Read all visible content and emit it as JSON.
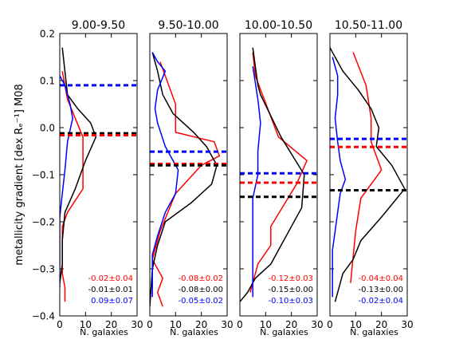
{
  "chart_data": {
    "type": "line",
    "ylabel": "metallicity gradient [dex Rₑ⁻¹] M08",
    "ylim": [
      -0.4,
      0.2
    ],
    "yticks": [
      -0.4,
      -0.3,
      -0.2,
      -0.1,
      0.0,
      0.1,
      0.2
    ],
    "ytick_labels": [
      "−0.4",
      "−0.3",
      "−0.2",
      "−0.1",
      "0.0",
      "0.1",
      "0.2"
    ],
    "xlim": [
      0,
      30
    ],
    "xticks": [
      0,
      10,
      20,
      30
    ],
    "xtick_labels": [
      "0",
      "10",
      "20",
      "30"
    ],
    "grid": false,
    "colors": {
      "red": "#ff0000",
      "black": "#000000",
      "blue": "#0000ff"
    },
    "panels": [
      {
        "title": "9.00-9.50",
        "xlabel": "N. galaxies",
        "series": [
          {
            "color": "red",
            "x": [
              1,
              3,
              9,
              9,
              3,
              1,
              1,
              1,
              1,
              2,
              2
            ],
            "y": [
              0.12,
              0.06,
              -0.02,
              -0.13,
              -0.18,
              -0.21,
              -0.25,
              -0.28,
              -0.31,
              -0.34,
              -0.37
            ]
          },
          {
            "color": "black",
            "x": [
              1,
              3,
              7,
              12,
              14,
              10,
              6,
              2,
              1,
              1,
              0
            ],
            "y": [
              0.17,
              0.07,
              0.04,
              0.01,
              -0.02,
              -0.07,
              -0.13,
              -0.18,
              -0.24,
              -0.29,
              -0.33
            ]
          },
          {
            "color": "blue",
            "x": [
              0,
              2,
              4,
              5,
              3,
              2,
              1,
              0,
              0,
              0,
              0,
              0
            ],
            "y": [
              0.11,
              0.09,
              0.05,
              0.02,
              -0.03,
              -0.09,
              -0.14,
              -0.19,
              -0.23,
              -0.27,
              -0.31,
              -0.34
            ]
          }
        ],
        "hlines": [
          {
            "color": "blue",
            "y": 0.09
          },
          {
            "color": "black",
            "y": -0.012
          },
          {
            "color": "red",
            "y": -0.016
          }
        ],
        "annotations": [
          {
            "color": "red",
            "text": "-0.02±0.04"
          },
          {
            "color": "black",
            "text": "-0.01±0.01"
          },
          {
            "color": "blue",
            "text": "0.09±0.07"
          }
        ]
      },
      {
        "title": "9.50-10.00",
        "xlabel": "N. galaxies",
        "series": [
          {
            "color": "red",
            "x": [
              4,
              10,
              10,
              25,
              27,
              20,
              10,
              4,
              1,
              5,
              3,
              5
            ],
            "y": [
              0.14,
              0.05,
              -0.01,
              -0.03,
              -0.06,
              -0.08,
              -0.14,
              -0.22,
              -0.28,
              -0.32,
              -0.35,
              -0.38
            ]
          },
          {
            "color": "black",
            "x": [
              1,
              3,
              5,
              9,
              17,
              22,
              26,
              24,
              16,
              6,
              3,
              1,
              0
            ],
            "y": [
              0.16,
              0.12,
              0.07,
              0.03,
              -0.01,
              -0.04,
              -0.08,
              -0.12,
              -0.16,
              -0.2,
              -0.25,
              -0.3,
              -0.38
            ]
          },
          {
            "color": "blue",
            "x": [
              1,
              3,
              6,
              3,
              2,
              3,
              6,
              11,
              10,
              6,
              3,
              1,
              1,
              1
            ],
            "y": [
              0.16,
              0.14,
              0.12,
              0.08,
              0.04,
              0.01,
              -0.04,
              -0.09,
              -0.14,
              -0.18,
              -0.23,
              -0.27,
              -0.3,
              -0.36
            ]
          }
        ],
        "hlines": [
          {
            "color": "blue",
            "y": -0.051
          },
          {
            "color": "red",
            "y": -0.077
          },
          {
            "color": "black",
            "y": -0.08
          }
        ],
        "annotations": [
          {
            "color": "red",
            "text": "-0.08±0.02"
          },
          {
            "color": "black",
            "text": "-0.08±0.00"
          },
          {
            "color": "blue",
            "text": "-0.05±0.02"
          }
        ]
      },
      {
        "title": "10.00-10.50",
        "xlabel": "N. galaxies",
        "series": [
          {
            "color": "red",
            "x": [
              5,
              6,
              15,
              26,
              22,
              12,
              12,
              7,
              4
            ],
            "y": [
              0.16,
              0.11,
              -0.02,
              -0.07,
              -0.12,
              -0.21,
              -0.25,
              -0.29,
              -0.35
            ]
          },
          {
            "color": "black",
            "x": [
              5,
              7,
              8,
              16,
              25,
              24,
              12,
              6,
              3,
              0
            ],
            "y": [
              0.17,
              0.09,
              0.07,
              -0.02,
              -0.1,
              -0.17,
              -0.29,
              -0.32,
              -0.35,
              -0.37
            ]
          },
          {
            "color": "blue",
            "x": [
              5,
              7,
              8,
              7,
              7,
              5,
              5,
              5,
              5,
              5
            ],
            "y": [
              0.13,
              0.06,
              0.01,
              -0.05,
              -0.1,
              -0.15,
              -0.21,
              -0.26,
              -0.31,
              -0.36
            ]
          }
        ],
        "hlines": [
          {
            "color": "blue",
            "y": -0.097
          },
          {
            "color": "red",
            "y": -0.117
          },
          {
            "color": "black",
            "y": -0.147
          }
        ],
        "annotations": [
          {
            "color": "red",
            "text": "-0.12±0.03"
          },
          {
            "color": "black",
            "text": "-0.15±0.00"
          },
          {
            "color": "blue",
            "text": "-0.10±0.03"
          }
        ]
      },
      {
        "title": "10.50-11.00",
        "xlabel": "N. galaxies",
        "series": [
          {
            "color": "red",
            "x": [
              9,
              14,
              16,
              16,
              20,
              12,
              10,
              8
            ],
            "y": [
              0.16,
              0.09,
              0.02,
              -0.03,
              -0.09,
              -0.15,
              -0.22,
              -0.33
            ]
          },
          {
            "color": "black",
            "x": [
              0,
              5,
              11,
              16,
              19,
              18,
              24,
              29,
              20,
              12,
              9,
              5,
              2
            ],
            "y": [
              0.17,
              0.12,
              0.08,
              0.04,
              0.0,
              -0.04,
              -0.08,
              -0.13,
              -0.19,
              -0.24,
              -0.28,
              -0.31,
              -0.37
            ]
          },
          {
            "color": "blue",
            "x": [
              1,
              3,
              3,
              2,
              3,
              4,
              6,
              4,
              3,
              2,
              1,
              1,
              1,
              1
            ],
            "y": [
              0.15,
              0.11,
              0.07,
              0.02,
              -0.03,
              -0.07,
              -0.11,
              -0.14,
              -0.18,
              -0.22,
              -0.26,
              -0.3,
              -0.33,
              -0.36
            ]
          }
        ],
        "hlines": [
          {
            "color": "blue",
            "y": -0.024
          },
          {
            "color": "red",
            "y": -0.041
          },
          {
            "color": "black",
            "y": -0.133
          }
        ],
        "annotations": [
          {
            "color": "red",
            "text": "-0.04±0.04"
          },
          {
            "color": "black",
            "text": "-0.13±0.00"
          },
          {
            "color": "blue",
            "text": "-0.02±0.04"
          }
        ]
      }
    ]
  }
}
